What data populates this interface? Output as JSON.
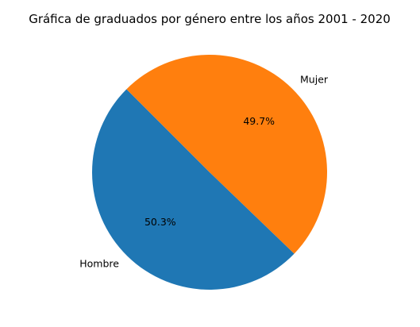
{
  "chart_data": {
    "type": "pie",
    "title": "Gráfica de graduados por género entre los años 2001 - 2020",
    "categories": [
      "Hombre",
      "Mujer"
    ],
    "values": [
      50.3,
      49.7
    ],
    "value_labels": [
      "50.3%",
      "49.7%"
    ],
    "colors": [
      "#1f77b4",
      "#ff7f0e"
    ],
    "start_angle_deg": 135,
    "direction": "counterclockwise",
    "legend": "none"
  }
}
